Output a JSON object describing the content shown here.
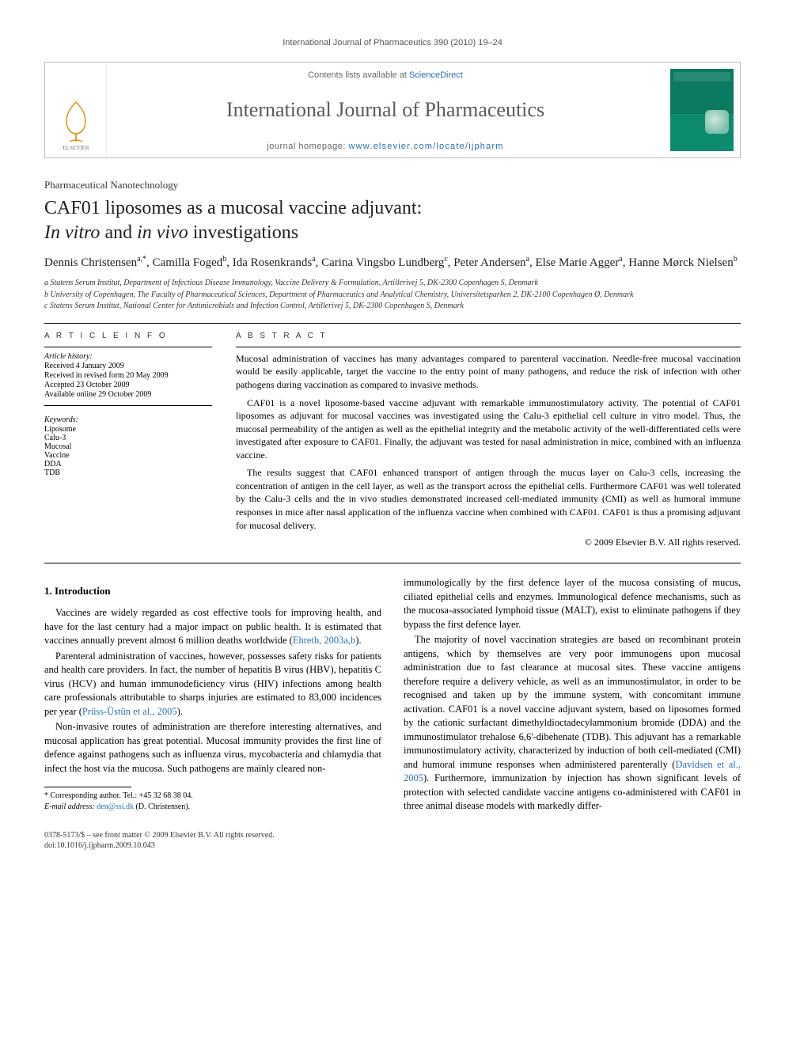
{
  "running_head": "International Journal of Pharmaceutics 390 (2010) 19–24",
  "masthead": {
    "contents_prefix": "Contents lists available at ",
    "contents_link": "ScienceDirect",
    "journal_name": "International Journal of Pharmaceutics",
    "homepage_prefix": "journal homepage: ",
    "homepage_url": "www.elsevier.com/locate/ijpharm"
  },
  "section_label": "Pharmaceutical Nanotechnology",
  "title_line1": "CAF01 liposomes as a mucosal vaccine adjuvant:",
  "title_line2_pre": "",
  "title_line2_ital1": "In vitro",
  "title_line2_mid": " and ",
  "title_line2_ital2": "in vivo",
  "title_line2_post": " investigations",
  "authors_html": "Dennis Christensen<sup>a,*</sup>, Camilla Foged<sup>b</sup>, Ida Rosenkrands<sup>a</sup>, Carina Vingsbo Lundberg<sup>c</sup>, Peter Andersen<sup>a</sup>, Else Marie Agger<sup>a</sup>, Hanne Mørck Nielsen<sup>b</sup>",
  "affiliations": [
    "a  Statens Serum Institut, Department of Infectious Disease Immunology, Vaccine Delivery & Formulation, Artillerivej 5, DK-2300 Copenhagen S, Denmark",
    "b  University of Copenhagen, The Faculty of Pharmaceutical Sciences, Department of Pharmaceutics and Analytical Chemistry, Universitetsparken 2, DK-2100 Copenhagen Ø, Denmark",
    "c  Statens Serum Institut, National Center for Antimicrobials and Infection Control, Artillerivej 5, DK-2300 Copenhagen S, Denmark"
  ],
  "info_heads": {
    "left": "A R T I C L E   I N F O",
    "right": "A B S T R A C T"
  },
  "history": {
    "label": "Article history:",
    "items": [
      "Received 4 January 2009",
      "Received in revised form 20 May 2009",
      "Accepted 23 October 2009",
      "Available online 29 October 2009"
    ]
  },
  "keywords": {
    "label": "Keywords:",
    "items": [
      "Liposome",
      "Calu-3",
      "Mucosal",
      "Vaccine",
      "DDA",
      "TDB"
    ]
  },
  "abstract": {
    "p1": "Mucosal administration of vaccines has many advantages compared to parenteral vaccination. Needle-free mucosal vaccination would be easily applicable, target the vaccine to the entry point of many pathogens, and reduce the risk of infection with other pathogens during vaccination as compared to invasive methods.",
    "p2": "CAF01 is a novel liposome-based vaccine adjuvant with remarkable immunostimulatory activity. The potential of CAF01 liposomes as adjuvant for mucosal vaccines was investigated using the Calu-3 epithelial cell culture in vitro model. Thus, the mucosal permeability of the antigen as well as the epithelial integrity and the metabolic activity of the well-differentiated cells were investigated after exposure to CAF01. Finally, the adjuvant was tested for nasal administration in mice, combined with an influenza vaccine.",
    "p3": "The results suggest that CAF01 enhanced transport of antigen through the mucus layer on Calu-3 cells, increasing the concentration of antigen in the cell layer, as well as the transport across the epithelial cells. Furthermore CAF01 was well tolerated by the Calu-3 cells and the in vivo studies demonstrated increased cell-mediated immunity (CMI) as well as humoral immune responses in mice after nasal application of the influenza vaccine when combined with CAF01. CAF01 is thus a promising adjuvant for mucosal delivery.",
    "copyright": "© 2009 Elsevier B.V. All rights reserved."
  },
  "body": {
    "h_intro": "1.  Introduction",
    "p1_pre": "Vaccines are widely regarded as cost effective tools for improving health, and have for the last century had a major impact on public health. It is estimated that vaccines annually prevent almost 6 million deaths worldwide (",
    "p1_cite": "Ehreth, 2003a,b",
    "p1_post": ").",
    "p2_pre": "Parenteral administration of vaccines, however, possesses safety risks for patients and health care providers. In fact, the number of hepatitis B virus (HBV), hepatitis C virus (HCV) and human immunodeficiency virus (HIV) infections among health care professionals attributable to sharps injuries are estimated to 83,000 incidences per year (",
    "p2_cite": "Prüss-Üstün et al., 2005",
    "p2_post": ").",
    "p3": "Non-invasive routes of administration are therefore interesting alternatives, and mucosal application has great potential. Mucosal immunity provides the first line of defence against pathogens such as influenza virus, mycobacteria and chlamydia that infect the host via the mucosa. Such pathogens are mainly cleared non-",
    "p4": "immunologically by the first defence layer of the mucosa consisting of mucus, ciliated epithelial cells and enzymes. Immunological defence mechanisms, such as the mucosa-associated lymphoid tissue (MALT), exist to eliminate pathogens if they bypass the first defence layer.",
    "p5_pre": "The majority of novel vaccination strategies are based on recombinant protein antigens, which by themselves are very poor immunogens upon mucosal administration due to fast clearance at mucosal sites. These vaccine antigens therefore require a delivery vehicle, as well as an immunostimulator, in order to be recognised and taken up by the immune system, with concomitant immune activation. CAF01 is a novel vaccine adjuvant system, based on liposomes formed by the cationic surfactant dimethyldioctadecylammonium bromide (DDA) and the immunostimulator trehalose 6,6'-dibehenate (TDB). This adjuvant has a remarkable immunostimulatory activity, characterized by induction of both cell-mediated (CMI) and humoral immune responses when administered parenterally (",
    "p5_cite": "Davidsen et al., 2005",
    "p5_post": "). Furthermore, immunization by injection has shown significant levels of protection with selected candidate vaccine antigens co-administered with CAF01 in three animal disease models with markedly differ-"
  },
  "footnotes": {
    "corr_label": "* Corresponding author. Tel.: +45 32 68 38 04.",
    "email_label": "E-mail address: ",
    "email": "den@ssi.dk",
    "email_post": " (D. Christensen)."
  },
  "bottom": {
    "line1": "0378-5173/$ – see front matter © 2009 Elsevier B.V. All rights reserved.",
    "line2": "doi:10.1016/j.ijpharm.2009.10.043"
  },
  "colors": {
    "link": "#2a6fb5",
    "cover_green": "#0a7a60",
    "text": "#000000",
    "muted": "#555555"
  }
}
